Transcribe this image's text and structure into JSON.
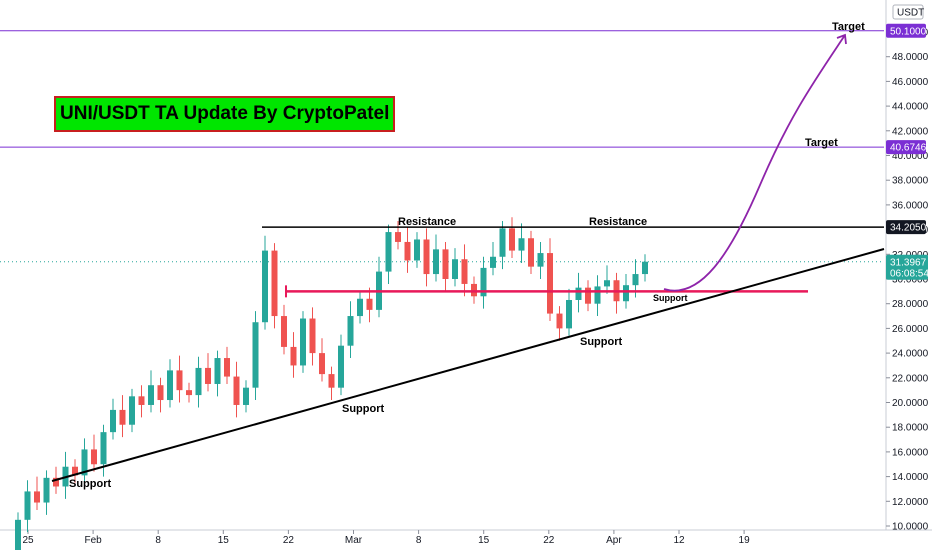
{
  "chart_data": {
    "type": "candlestick",
    "title": "UNI/USDT TA Update By CryptoPatel",
    "currency_label": "USDT",
    "y_axis_top_label": "5",
    "ylim": [
      10,
      53
    ],
    "y_ticks": [
      "12.0000",
      "14.0000",
      "16.0000",
      "18.0000",
      "20.0000",
      "22.0000",
      "24.0000",
      "26.0000",
      "28.0000",
      "30.0000",
      "32.0000",
      "34.0000",
      "36.0000",
      "38.0000",
      "40.0000",
      "42.0000",
      "44.0000",
      "46.0000",
      "48.0000",
      "50.0000",
      "10.0000"
    ],
    "x_ticks": [
      "25",
      "Feb",
      "8",
      "15",
      "22",
      "Mar",
      "8",
      "15",
      "22",
      "Apr",
      "12",
      "19"
    ],
    "x_tick_days": [
      0,
      7,
      14,
      21,
      28,
      35,
      42,
      49,
      56,
      63,
      70,
      77
    ],
    "price_labels": {
      "current_price": "31.3967",
      "countdown": "06:08:54",
      "level_target_1": "50.1000",
      "level_target_2": "40.6746",
      "level_resistance": "34.2050"
    },
    "levels": {
      "target_1": 50.1,
      "target_2": 40.6746,
      "resistance": 34.205,
      "support_zone": 29.0,
      "current": 31.3967
    },
    "annotations": {
      "target_upper": "Target",
      "target_lower": "Target",
      "resistance_left": "Resistance",
      "resistance_right": "Resistance",
      "support_1": "Support",
      "support_2": "Support",
      "support_3": "Support",
      "support_4": "Support"
    },
    "candles": [
      [
        6.8,
        10.5
      ],
      [
        10.5,
        12.8
      ],
      [
        12.8,
        11.9
      ],
      [
        11.9,
        13.9
      ],
      [
        13.9,
        13.2
      ],
      [
        13.2,
        14.8
      ],
      [
        14.8,
        14.1
      ],
      [
        14.1,
        16.2
      ],
      [
        16.2,
        15.0
      ],
      [
        15.0,
        17.6
      ],
      [
        17.6,
        19.4
      ],
      [
        19.4,
        18.2
      ],
      [
        18.2,
        20.5
      ],
      [
        20.5,
        19.8
      ],
      [
        19.8,
        21.4
      ],
      [
        21.4,
        20.2
      ],
      [
        20.2,
        22.6
      ],
      [
        22.6,
        21.0
      ],
      [
        21.0,
        20.6
      ],
      [
        20.6,
        22.8
      ],
      [
        22.8,
        21.5
      ],
      [
        21.5,
        23.6
      ],
      [
        23.6,
        22.1
      ],
      [
        22.1,
        19.8
      ],
      [
        19.8,
        21.2
      ],
      [
        21.2,
        26.5
      ],
      [
        26.5,
        32.3
      ],
      [
        32.3,
        27.0
      ],
      [
        27.0,
        24.5
      ],
      [
        24.5,
        23.0
      ],
      [
        23.0,
        26.8
      ],
      [
        26.8,
        24.0
      ],
      [
        24.0,
        22.3
      ],
      [
        22.3,
        21.2
      ],
      [
        21.2,
        24.6
      ],
      [
        24.6,
        27.0
      ],
      [
        27.0,
        28.4
      ],
      [
        28.4,
        27.5
      ],
      [
        27.5,
        30.6
      ],
      [
        30.6,
        33.8
      ],
      [
        33.8,
        33.0
      ],
      [
        33.0,
        31.5
      ],
      [
        31.5,
        33.2
      ],
      [
        33.2,
        30.4
      ],
      [
        30.4,
        32.4
      ],
      [
        32.4,
        30.0
      ],
      [
        30.0,
        31.6
      ],
      [
        31.6,
        29.6
      ],
      [
        29.6,
        28.6
      ],
      [
        28.6,
        30.9
      ],
      [
        30.9,
        31.8
      ],
      [
        31.8,
        34.1
      ],
      [
        34.1,
        32.3
      ],
      [
        32.3,
        33.3
      ],
      [
        33.3,
        31.0
      ],
      [
        31.0,
        32.1
      ],
      [
        32.1,
        27.2
      ],
      [
        27.2,
        26.0
      ],
      [
        26.0,
        28.3
      ],
      [
        28.3,
        29.3
      ],
      [
        29.3,
        28.0
      ],
      [
        28.0,
        29.4
      ],
      [
        29.4,
        29.9
      ],
      [
        29.9,
        28.2
      ],
      [
        28.2,
        29.5
      ],
      [
        29.5,
        30.4
      ],
      [
        30.4,
        31.4
      ]
    ]
  }
}
